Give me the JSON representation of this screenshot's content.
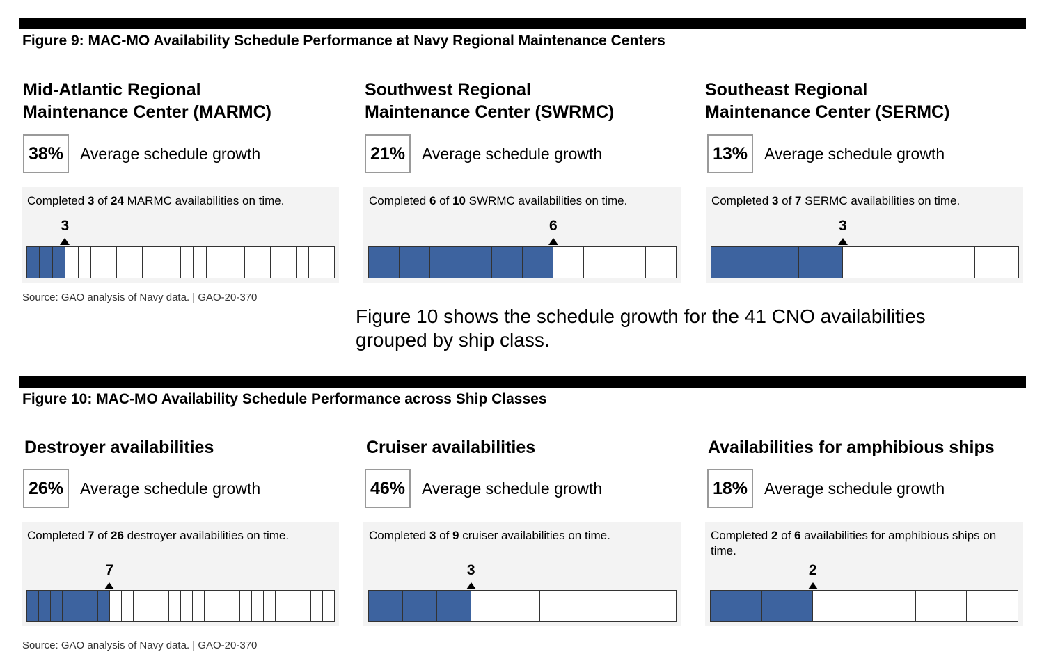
{
  "figure9": {
    "title": "Figure 9: MAC-MO Availability Schedule Performance at Navy Regional Maintenance Centers",
    "source": "Source: GAO analysis of Navy data.  |  GAO-20-370",
    "panels": [
      {
        "heading_line1": "Mid-Atlantic Regional",
        "heading_line2": "Maintenance Center (MARMC)",
        "growth_pct": "38%",
        "growth_label": "Average schedule growth",
        "caption_prefix": "Completed ",
        "completed": 3,
        "caption_mid": " of ",
        "total": 24,
        "caption_suffix": " MARMC availabilities on time.",
        "marker": "3"
      },
      {
        "heading_line1": "Southwest Regional",
        "heading_line2": "Maintenance Center (SWRMC)",
        "growth_pct": "21%",
        "growth_label": "Average schedule growth",
        "caption_prefix": "Completed ",
        "completed": 6,
        "caption_mid": " of ",
        "total": 10,
        "caption_suffix": " SWRMC availabilities on time.",
        "marker": "6"
      },
      {
        "heading_line1": "Southeast Regional",
        "heading_line2": "Maintenance Center (SERMC)",
        "growth_pct": "13%",
        "growth_label": "Average schedule growth",
        "caption_prefix": "Completed ",
        "completed": 3,
        "caption_mid": " of ",
        "total": 7,
        "caption_suffix": " SERMC availabilities on time.",
        "marker": "3"
      }
    ]
  },
  "body_text": "Figure 10 shows the schedule growth for the 41 CNO availabilities grouped by ship class.",
  "figure10": {
    "title": "Figure 10: MAC-MO Availability Schedule Performance across Ship Classes",
    "source": "Source: GAO analysis of Navy data.  |  GAO-20-370",
    "panels": [
      {
        "heading_line1": "Destroyer availabilities",
        "growth_pct": "26%",
        "growth_label": "Average schedule growth",
        "caption_prefix": "Completed ",
        "completed": 7,
        "caption_mid": " of ",
        "total": 26,
        "caption_suffix": " destroyer availabilities on time.",
        "marker": "7"
      },
      {
        "heading_line1": "Cruiser availabilities",
        "growth_pct": "46%",
        "growth_label": "Average schedule growth",
        "caption_prefix": "Completed ",
        "completed": 3,
        "caption_mid": " of ",
        "total": 9,
        "caption_suffix": " cruiser availabilities on time.",
        "marker": "3"
      },
      {
        "heading_line1": "Availabilities for amphibious ships",
        "growth_pct": "18%",
        "growth_label": "Average schedule growth",
        "caption_prefix": "Completed ",
        "completed": 2,
        "caption_mid": " of ",
        "total": 6,
        "caption_suffix": " availabilities for amphibious ships on time.",
        "marker": "2"
      }
    ]
  },
  "colors": {
    "completed_fill": "#3d639f",
    "panel_background": "#f3f3f3"
  }
}
